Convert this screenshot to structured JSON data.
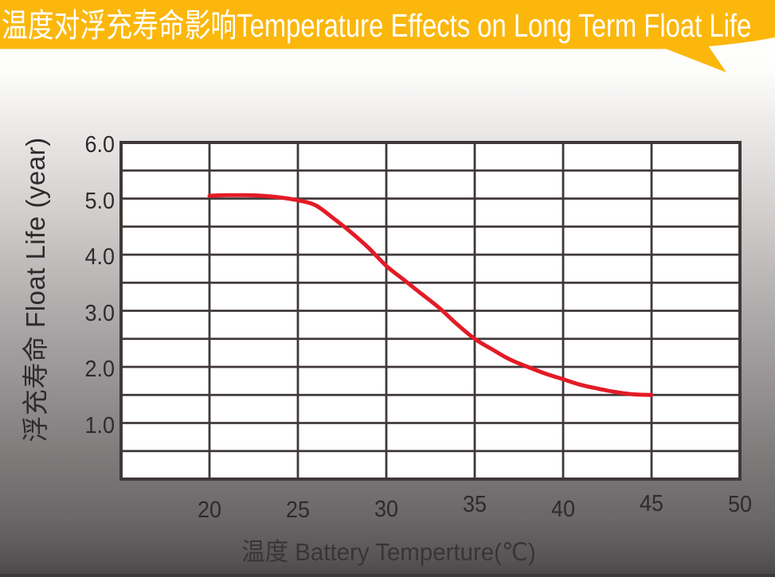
{
  "header": {
    "title": "温度对浮充寿命影响Temperature Effects on Long Term Float Life"
  },
  "colors": {
    "banner_yellow": "#fbb70b",
    "banner_text": "#ffffff",
    "curve_red": "#e31b26",
    "grid_dark": "#3f383a",
    "plot_background": "#ffffff",
    "tick_text": "#2f2a2c"
  },
  "chart_data": {
    "type": "line",
    "title": "温度对浮充寿命影响Temperature Effects on Long Term Float Life",
    "xlabel": "温度  Battery  Temperture(℃)",
    "ylabel": "浮充寿命  Float Life (year)",
    "xlim": [
      15,
      50
    ],
    "ylim": [
      0,
      6
    ],
    "x_gridline_step": 5,
    "y_gridline_step": 0.5,
    "xticks": [
      "20",
      "25",
      "30",
      "35",
      "40",
      "45",
      "50"
    ],
    "xtick_values": [
      20,
      25,
      30,
      35,
      40,
      45,
      50
    ],
    "yticks": [
      "6.0",
      "5.0",
      "4.0",
      "3.0",
      "2.0",
      "1.0"
    ],
    "ytick_values": [
      6.0,
      5.0,
      4.0,
      3.0,
      2.0,
      1.0
    ],
    "grid": true,
    "legend_position": "none",
    "series": [
      {
        "name": "float-life-vs-temperature",
        "x": [
          20,
          21,
          22,
          23,
          24,
          25,
          26,
          27,
          28,
          29,
          30,
          31,
          32,
          33,
          34,
          35,
          36,
          37,
          38,
          39,
          40,
          41,
          42,
          43,
          44,
          45
        ],
        "y": [
          5.05,
          5.06,
          5.06,
          5.05,
          5.02,
          4.97,
          4.88,
          4.65,
          4.4,
          4.12,
          3.8,
          3.55,
          3.3,
          3.05,
          2.76,
          2.5,
          2.31,
          2.13,
          2.0,
          1.88,
          1.78,
          1.68,
          1.61,
          1.55,
          1.51,
          1.5
        ]
      }
    ]
  }
}
